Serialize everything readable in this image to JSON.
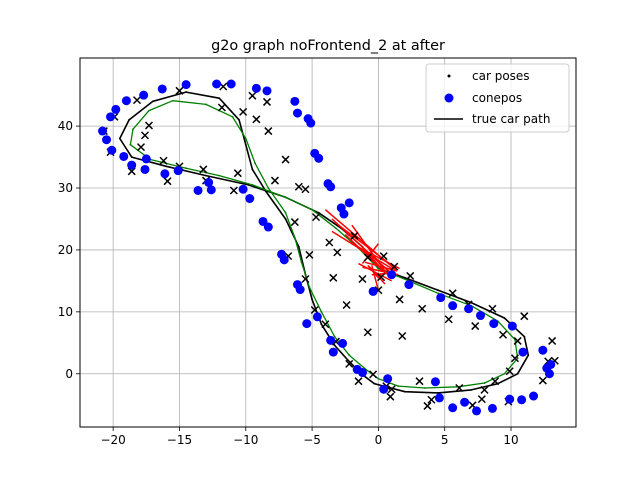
{
  "chart_data": {
    "type": "scatter",
    "title": "g2o graph noFrontend_2 at after",
    "xlabel": "",
    "ylabel": "",
    "xlim": [
      -22.5,
      14.9
    ],
    "ylim": [
      -8.6,
      51.0
    ],
    "xticks": [
      -20,
      -15,
      -10,
      -5,
      0,
      5,
      10
    ],
    "yticks": [
      0,
      10,
      20,
      30,
      40
    ],
    "grid": true,
    "legend": {
      "position": "top-right",
      "entries": [
        {
          "label": "car poses",
          "marker": "dot",
          "color": "#000000"
        },
        {
          "label": "conepos",
          "marker": "circle",
          "color": "#0000ff"
        },
        {
          "label": "true car path",
          "marker": "line",
          "color": "#000000"
        }
      ]
    },
    "series": [
      {
        "name": "true car path",
        "kind": "line",
        "color": "#000000",
        "points": [
          [
            0,
            17
          ],
          [
            2,
            15.5
          ],
          [
            4.5,
            13.5
          ],
          [
            7,
            11.5
          ],
          [
            9.5,
            9
          ],
          [
            11,
            6
          ],
          [
            11.3,
            3
          ],
          [
            10.5,
            0
          ],
          [
            9,
            -1.6
          ],
          [
            7,
            -2.6
          ],
          [
            4.5,
            -3.1
          ],
          [
            2,
            -2.9
          ],
          [
            -0.3,
            -1.6
          ],
          [
            -1.3,
            0
          ],
          [
            -2.3,
            2.2
          ],
          [
            -3.3,
            4.6
          ],
          [
            -4.3,
            8
          ],
          [
            -5,
            12
          ],
          [
            -5.5,
            16
          ],
          [
            -6,
            20.5
          ],
          [
            -7,
            25
          ],
          [
            -8.5,
            29.5
          ],
          [
            -9.5,
            33
          ],
          [
            -10,
            37
          ],
          [
            -10.5,
            41
          ],
          [
            -12,
            44.5
          ],
          [
            -14.5,
            45.5
          ],
          [
            -17,
            44
          ],
          [
            -18.8,
            41
          ],
          [
            -19.5,
            38
          ],
          [
            -18.6,
            35
          ],
          [
            -16,
            33.5
          ],
          [
            -13,
            32
          ],
          [
            -9.8,
            30.5
          ],
          [
            -7,
            28.5
          ],
          [
            -4.5,
            26
          ],
          [
            -2.8,
            23.5
          ],
          [
            -1.2,
            20.5
          ],
          [
            0,
            17
          ]
        ]
      },
      {
        "name": "",
        "kind": "line",
        "color": "#008000",
        "points": [
          [
            0,
            17
          ],
          [
            2.3,
            15
          ],
          [
            4.5,
            13
          ],
          [
            7,
            11
          ],
          [
            9,
            8.5
          ],
          [
            10.3,
            5.5
          ],
          [
            10.5,
            2.5
          ],
          [
            9.5,
            0
          ],
          [
            8,
            -1.5
          ],
          [
            6,
            -2.1
          ],
          [
            3.5,
            -2.3
          ],
          [
            1.5,
            -2
          ],
          [
            0,
            -0.8
          ],
          [
            -1,
            0.8
          ],
          [
            -2.2,
            3
          ],
          [
            -3.3,
            6
          ],
          [
            -4.3,
            10
          ],
          [
            -5.2,
            14
          ],
          [
            -5.8,
            18
          ],
          [
            -6.3,
            22
          ],
          [
            -7,
            26
          ],
          [
            -8.3,
            30
          ],
          [
            -9.3,
            34
          ],
          [
            -10,
            38
          ],
          [
            -11,
            41.5
          ],
          [
            -13,
            43.5
          ],
          [
            -15.5,
            44.1
          ],
          [
            -17.3,
            42.5
          ],
          [
            -18.5,
            39.5
          ],
          [
            -18.7,
            37
          ],
          [
            -17.2,
            34.6
          ],
          [
            -14.5,
            33.2
          ],
          [
            -12,
            32
          ],
          [
            -9.5,
            30.5
          ],
          [
            -7,
            28.5
          ],
          [
            -5,
            26.5
          ],
          [
            -3.2,
            23.5
          ],
          [
            -1.5,
            20.3
          ],
          [
            0,
            17
          ]
        ]
      },
      {
        "name": "car poses",
        "kind": "x",
        "color": "#000000",
        "points": [
          [
            -20.2,
            35.8
          ],
          [
            -20.7,
            39.2
          ],
          [
            -19.9,
            41.5
          ],
          [
            -18.6,
            32.7
          ],
          [
            -17.6,
            38.5
          ],
          [
            -17.3,
            40.1
          ],
          [
            -16.2,
            34.4
          ],
          [
            -15.9,
            31.1
          ],
          [
            -15,
            33.5
          ],
          [
            -13.2,
            33
          ],
          [
            -13,
            31.2
          ],
          [
            -11.8,
            43
          ],
          [
            -11.7,
            46.4
          ],
          [
            -10.9,
            29.6
          ],
          [
            -10.6,
            32.4
          ],
          [
            -10.2,
            42.3
          ],
          [
            -9.5,
            44.9
          ],
          [
            -9.2,
            41.1
          ],
          [
            -8.4,
            43.9
          ],
          [
            -8.3,
            39.2
          ],
          [
            -7.8,
            31.2
          ],
          [
            -7,
            34.6
          ],
          [
            -6.8,
            19
          ],
          [
            -6.3,
            24.5
          ],
          [
            -6,
            30.2
          ],
          [
            -5.5,
            29.8
          ],
          [
            -5.5,
            15.3
          ],
          [
            -5.2,
            19.2
          ],
          [
            -4.8,
            10.3
          ],
          [
            -4.7,
            25.3
          ],
          [
            -4,
            8
          ],
          [
            -3.7,
            21.2
          ],
          [
            -3.4,
            15.5
          ],
          [
            -3.1,
            19.6
          ],
          [
            -3.2,
            5.2
          ],
          [
            -2.4,
            11.1
          ],
          [
            -2.2,
            1.6
          ],
          [
            -1.8,
            22.3
          ],
          [
            -1.5,
            -1.2
          ],
          [
            -1.2,
            15.3
          ],
          [
            -0.8,
            6.7
          ],
          [
            -0.8,
            18.8
          ],
          [
            -0.4,
            -0.1
          ],
          [
            0,
            13.5
          ],
          [
            0.2,
            15.6
          ],
          [
            0.4,
            19
          ],
          [
            0.6,
            -2
          ],
          [
            0.9,
            -3.7
          ],
          [
            1,
            -2.5
          ],
          [
            1.2,
            17.3
          ],
          [
            1.6,
            12
          ],
          [
            1.8,
            6.1
          ],
          [
            2.4,
            15.8
          ],
          [
            3.1,
            -1.2
          ],
          [
            3.3,
            10.5
          ],
          [
            3.7,
            -5.2
          ],
          [
            4,
            -4.2
          ],
          [
            5.3,
            8.8
          ],
          [
            5.6,
            13
          ],
          [
            6.1,
            -2.3
          ],
          [
            6.8,
            11.2
          ],
          [
            7.1,
            -5.1
          ],
          [
            7.3,
            7.7
          ],
          [
            7.8,
            -4.1
          ],
          [
            8,
            -2.6
          ],
          [
            8.6,
            10.5
          ],
          [
            8.8,
            -1.2
          ],
          [
            9.4,
            6.3
          ],
          [
            9.8,
            -4.5
          ],
          [
            9.9,
            0.4
          ],
          [
            10.3,
            2.5
          ],
          [
            10.5,
            5.3
          ],
          [
            11,
            9.3
          ],
          [
            12.4,
            -1.1
          ],
          [
            12.8,
            2
          ],
          [
            13.1,
            5.3
          ],
          [
            13.3,
            2.1
          ],
          [
            -18.2,
            44.2
          ],
          [
            -15,
            45.7
          ],
          [
            -17.9,
            36.6
          ]
        ]
      },
      {
        "name": "conepos",
        "kind": "circle",
        "color": "#0000ff",
        "points": [
          [
            -20.8,
            39.2
          ],
          [
            -20.5,
            37.8
          ],
          [
            -20.2,
            41.5
          ],
          [
            -19.8,
            42.7
          ],
          [
            -20.1,
            36.1
          ],
          [
            -19.2,
            35.1
          ],
          [
            -19,
            44.1
          ],
          [
            -18.6,
            33.7
          ],
          [
            -17.7,
            45
          ],
          [
            -17.6,
            33
          ],
          [
            -17.5,
            34.7
          ],
          [
            -16.3,
            46
          ],
          [
            -16.1,
            32.3
          ],
          [
            -15.1,
            32.8
          ],
          [
            -14.5,
            46.7
          ],
          [
            -13.6,
            29.6
          ],
          [
            -12.8,
            30.9
          ],
          [
            -12.6,
            29.7
          ],
          [
            -12.2,
            46.8
          ],
          [
            -11.1,
            46.8
          ],
          [
            -10.2,
            29.8
          ],
          [
            -9.7,
            28.3
          ],
          [
            -9.2,
            46.1
          ],
          [
            -8.7,
            24.6
          ],
          [
            -8.4,
            45.7
          ],
          [
            -8.3,
            23.7
          ],
          [
            -7.3,
            19.3
          ],
          [
            -7.1,
            18.4
          ],
          [
            -6.3,
            44
          ],
          [
            -6.1,
            42.1
          ],
          [
            -6.1,
            14.4
          ],
          [
            -5.9,
            13.6
          ],
          [
            -5.4,
            8.1
          ],
          [
            -5.3,
            41.2
          ],
          [
            -5.1,
            40.5
          ],
          [
            -4.8,
            35.6
          ],
          [
            -4.6,
            9.2
          ],
          [
            -4.5,
            34.8
          ],
          [
            -3.8,
            30.7
          ],
          [
            -3.6,
            30.2
          ],
          [
            -3.6,
            5.4
          ],
          [
            -3.4,
            3.5
          ],
          [
            -2.8,
            26.8
          ],
          [
            -2.6,
            25.8
          ],
          [
            -2.7,
            4.9
          ],
          [
            -2.2,
            27.6
          ],
          [
            -1.6,
            0.7
          ],
          [
            -1.2,
            0.2
          ],
          [
            -0.4,
            13.3
          ],
          [
            0.4,
            -2.5
          ],
          [
            0.7,
            -0.8
          ],
          [
            1,
            16
          ],
          [
            2.3,
            14.4
          ],
          [
            4.3,
            -1.3
          ],
          [
            4.6,
            -3.9
          ],
          [
            4.7,
            12.3
          ],
          [
            5.6,
            11
          ],
          [
            5.6,
            -5.5
          ],
          [
            6.5,
            -4.6
          ],
          [
            6.8,
            10.5
          ],
          [
            7.4,
            -6
          ],
          [
            7.7,
            9.4
          ],
          [
            8.6,
            -5.6
          ],
          [
            8.7,
            8.1
          ],
          [
            9.9,
            -4.1
          ],
          [
            10.1,
            7.7
          ],
          [
            10.8,
            -4.2
          ],
          [
            10.9,
            3.5
          ],
          [
            11.7,
            -3.6
          ],
          [
            12.4,
            3.8
          ],
          [
            12.7,
            0.9
          ],
          [
            13,
            1.5
          ],
          [
            12.9,
            0
          ]
        ]
      },
      {
        "name": "",
        "kind": "edges",
        "color": "#ff0000",
        "from": [
          [
            -4,
            26.5
          ],
          [
            -3.5,
            25
          ],
          [
            -3,
            24
          ],
          [
            -2.5,
            22.5
          ],
          [
            -2,
            21
          ],
          [
            -1,
            20
          ],
          [
            -0.5,
            19
          ],
          [
            0,
            21
          ],
          [
            0,
            13.5
          ],
          [
            0.5,
            14.5
          ],
          [
            1,
            15
          ],
          [
            1.5,
            16
          ],
          [
            -1,
            18
          ],
          [
            -0.5,
            16
          ],
          [
            0,
            15.5
          ],
          [
            -3.5,
            23
          ],
          [
            -2,
            24
          ]
        ],
        "to": [
          [
            1.3,
            16.8
          ],
          [
            0.8,
            16.5
          ],
          [
            1.2,
            17.2
          ],
          [
            0.5,
            16.3
          ],
          [
            1.6,
            17
          ],
          [
            0.3,
            16.8
          ],
          [
            1,
            16.2
          ],
          [
            -1.2,
            17.8
          ],
          [
            -0.5,
            17.5
          ],
          [
            -0.7,
            17.3
          ],
          [
            -1.5,
            17.8
          ],
          [
            -1.2,
            17.2
          ],
          [
            1.4,
            16.6
          ],
          [
            1.2,
            16.3
          ],
          [
            -0.8,
            17.5
          ],
          [
            1,
            17
          ],
          [
            0.7,
            16
          ]
        ]
      }
    ]
  }
}
